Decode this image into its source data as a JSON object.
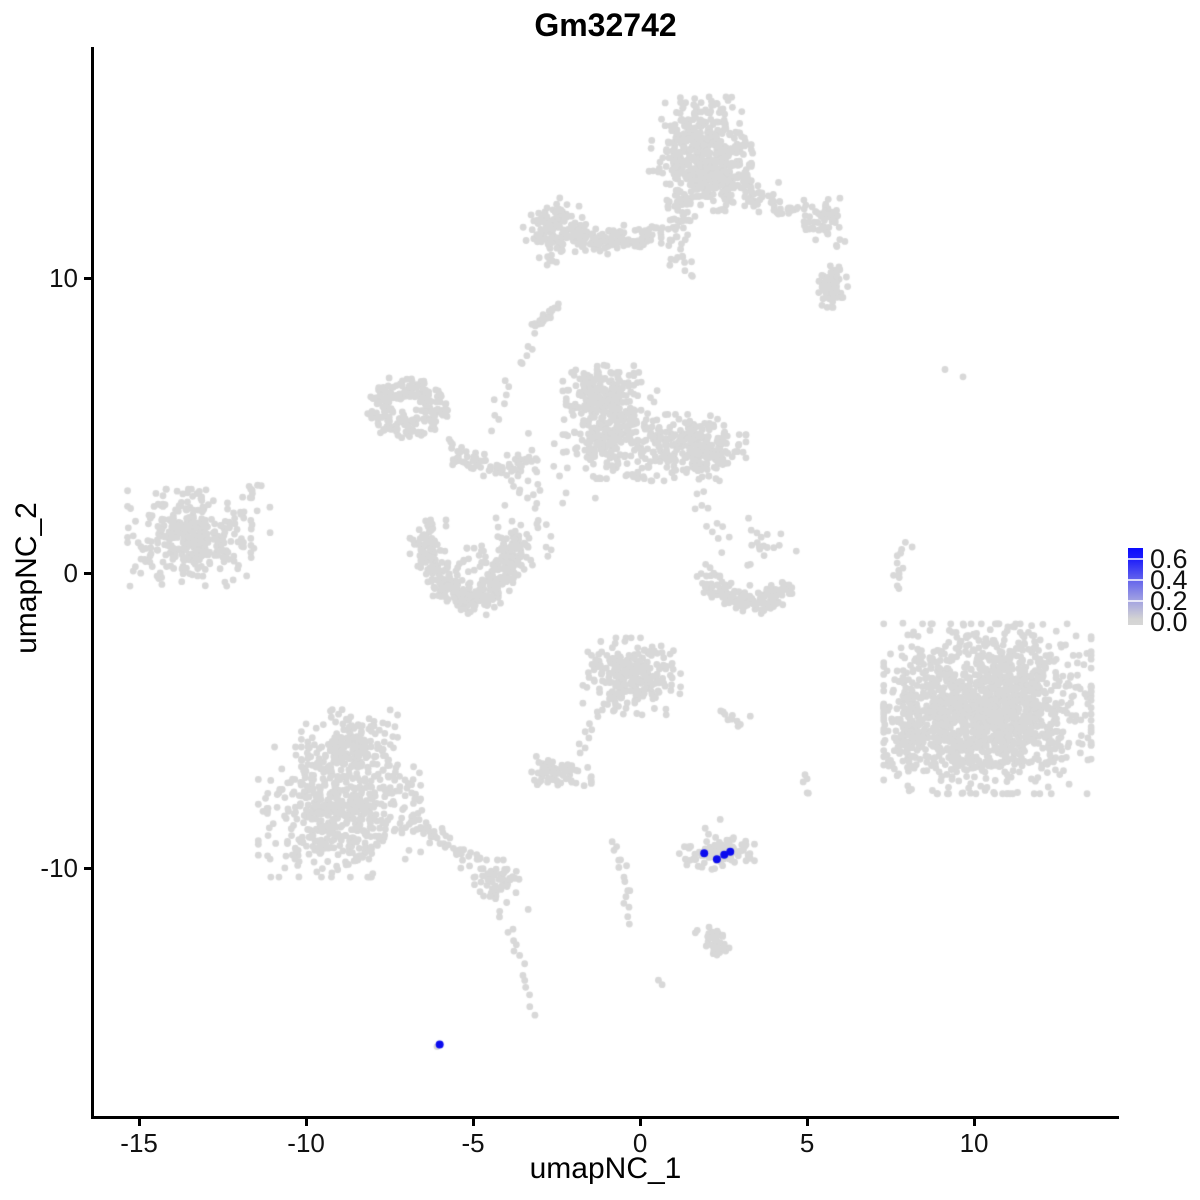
{
  "title": "Gm32742",
  "axes": {
    "x_label": "umapNC_1",
    "y_label": "umapNC_2",
    "x_ticks": [
      "-15",
      "-10",
      "-5",
      "0",
      "5",
      "10"
    ],
    "x_tick_values": [
      -15,
      -10,
      -5,
      0,
      5,
      10
    ],
    "y_ticks": [
      "10",
      "0",
      "-10"
    ],
    "y_tick_values": [
      10,
      0,
      -10
    ]
  },
  "legend": {
    "tick_labels": [
      "0.6",
      "0.4",
      "0.2",
      "0.0"
    ],
    "tick_values": [
      0.6,
      0.4,
      0.2,
      0.0
    ],
    "low_color": "#d3d3d3",
    "high_color": "#0b0bff",
    "gradient_stops": [
      "#d6d6d6 0%",
      "#d3d3d3 8%",
      "#9b9be3 35%",
      "#5b5bee 62%",
      "#1d1dfa 86%",
      "#0b0bff 100%"
    ]
  },
  "chart_data": {
    "type": "scatter",
    "title": "Gm32742",
    "xlabel": "umapNC_1",
    "ylabel": "umapNC_2",
    "xlim": [
      -16.38,
      14.31
    ],
    "ylim": [
      -18.47,
      17.83
    ],
    "grid": false,
    "legend_position": "right",
    "point_color": "#d8d8d8",
    "highlight_color": "#0b0bee",
    "point_radius": 3.4,
    "highlight_radius": 4,
    "colorbar_range": [
      0.0,
      0.6
    ],
    "clusters": [
      {
        "name": "top-main",
        "kind": "blob",
        "cx": 1.8,
        "cy": 14.45,
        "sx": 0.68,
        "sy": 0.75,
        "n": 360
      },
      {
        "name": "top-main-lower",
        "kind": "blob",
        "cx": 2.2,
        "cy": 13.4,
        "sx": 0.52,
        "sy": 0.5,
        "n": 200
      },
      {
        "name": "top-funnel",
        "kind": "blob",
        "cx": 1.15,
        "cy": 12.2,
        "sx": 0.22,
        "sy": 0.5,
        "n": 45
      },
      {
        "name": "top-funnel-trail",
        "kind": "string",
        "pts": [
          [
            1.15,
            11.2
          ],
          [
            1.5,
            10.0
          ]
        ],
        "jitter": 0.22,
        "n": 14
      },
      {
        "name": "top-left-arm-blob",
        "kind": "blob",
        "cx": -2.6,
        "cy": 11.7,
        "sx": 0.4,
        "sy": 0.45,
        "n": 115
      },
      {
        "name": "top-left-arm-band",
        "kind": "string",
        "pts": [
          [
            -2.1,
            11.55
          ],
          [
            -1.0,
            11.3
          ],
          [
            0.6,
            11.55
          ]
        ],
        "jitter": 0.2,
        "n": 130
      },
      {
        "name": "top-left-arm-tail",
        "kind": "string",
        "pts": [
          [
            -2.75,
            11.0
          ],
          [
            -2.6,
            10.3
          ]
        ],
        "jitter": 0.1,
        "n": 6
      },
      {
        "name": "top-right-arm",
        "kind": "string",
        "pts": [
          [
            3.0,
            13.0
          ],
          [
            4.4,
            12.4
          ],
          [
            5.9,
            11.4
          ]
        ],
        "jitter": 0.26,
        "n": 85
      },
      {
        "name": "top-right-knot",
        "kind": "blob",
        "cx": 5.6,
        "cy": 12.1,
        "sx": 0.2,
        "sy": 0.27,
        "n": 28
      },
      {
        "name": "right-arm-blob",
        "kind": "blob",
        "cx": 5.72,
        "cy": 9.7,
        "sx": 0.22,
        "sy": 0.33,
        "n": 65
      },
      {
        "name": "streak",
        "kind": "string",
        "pts": [
          [
            -3.08,
            8.4
          ],
          [
            -2.5,
            9.05
          ]
        ],
        "jitter": 0.09,
        "n": 18
      },
      {
        "name": "mid-string-up",
        "kind": "string",
        "pts": [
          [
            -4.5,
            4.9
          ],
          [
            -3.0,
            8.8
          ]
        ],
        "jitter": 0.13,
        "n": 16
      },
      {
        "name": "mid-ring",
        "kind": "ring",
        "cx": -6.95,
        "cy": 5.6,
        "r": 0.85,
        "w": 0.38,
        "squash": 0.8,
        "n": 190
      },
      {
        "name": "mid-ring-core",
        "kind": "blob",
        "cx": -6.95,
        "cy": 5.6,
        "sx": 0.5,
        "sy": 0.45,
        "n": 25
      },
      {
        "name": "mid-connector",
        "kind": "string",
        "pts": [
          [
            -5.8,
            4.3
          ],
          [
            -4.5,
            3.6
          ],
          [
            -3.2,
            3.9
          ]
        ],
        "jitter": 0.18,
        "n": 70
      },
      {
        "name": "mid-central",
        "kind": "blob",
        "cx": -0.85,
        "cy": 5.0,
        "sx": 0.65,
        "sy": 0.8,
        "n": 300
      },
      {
        "name": "mid-central-top",
        "kind": "blob",
        "cx": -1.2,
        "cy": 6.1,
        "sx": 0.45,
        "sy": 0.42,
        "n": 140
      },
      {
        "name": "mid-right-lobe",
        "kind": "blob",
        "cx": 1.55,
        "cy": 4.25,
        "sx": 0.72,
        "sy": 0.5,
        "n": 270
      },
      {
        "name": "mid-scatter",
        "kind": "blob",
        "cx": -3.0,
        "cy": 2.6,
        "sx": 0.75,
        "sy": 0.95,
        "n": 40
      },
      {
        "name": "crescent-band",
        "kind": "string",
        "pts": [
          [
            -6.4,
            0.5
          ],
          [
            -5.05,
            -0.85
          ],
          [
            -3.75,
            0.55
          ]
        ],
        "jitter": 0.22,
        "n": 240
      },
      {
        "name": "crescent-left-horn",
        "kind": "blob",
        "cx": -6.35,
        "cy": 0.9,
        "sx": 0.24,
        "sy": 0.4,
        "n": 70
      },
      {
        "name": "crescent-right-horn",
        "kind": "blob",
        "cx": -3.8,
        "cy": 0.75,
        "sx": 0.26,
        "sy": 0.36,
        "n": 70
      },
      {
        "name": "crescent-inner",
        "kind": "blob",
        "cx": -5.1,
        "cy": 0.4,
        "sx": 0.5,
        "sy": 0.35,
        "n": 35
      },
      {
        "name": "left-cluster",
        "kind": "blob",
        "cx": -13.5,
        "cy": 1.2,
        "sx": 0.82,
        "sy": 0.73,
        "n": 330
      },
      {
        "name": "left-cluster-outliers",
        "kind": "blob",
        "cx": -11.85,
        "cy": 1.4,
        "sx": 0.38,
        "sy": 0.85,
        "n": 20
      },
      {
        "name": "left-cluster-streak",
        "kind": "string",
        "pts": [
          [
            -11.75,
            2.65
          ],
          [
            -11.3,
            2.9
          ]
        ],
        "jitter": 0.06,
        "n": 6
      },
      {
        "name": "right-string",
        "kind": "string",
        "pts": [
          [
            7.95,
            1.05
          ],
          [
            7.65,
            -0.5
          ]
        ],
        "jitter": 0.1,
        "n": 13
      },
      {
        "name": "right-string-dots",
        "kind": "dots",
        "pts": [
          [
            7.87,
            -1.7
          ],
          [
            9.13,
            6.9
          ],
          [
            9.67,
            6.65
          ]
        ]
      },
      {
        "name": "smile-band",
        "kind": "string",
        "pts": [
          [
            1.9,
            -0.1
          ],
          [
            3.2,
            -1.0
          ],
          [
            4.45,
            -0.4
          ]
        ],
        "jitter": 0.2,
        "n": 150
      },
      {
        "name": "smile-upper",
        "kind": "blob",
        "cx": 3.45,
        "cy": 0.9,
        "sx": 0.55,
        "sy": 0.5,
        "n": 20
      },
      {
        "name": "smile-trail",
        "kind": "string",
        "pts": [
          [
            1.8,
            2.9
          ],
          [
            2.25,
            1.0
          ]
        ],
        "jitter": 0.16,
        "n": 10
      },
      {
        "name": "right-big",
        "kind": "blob",
        "cx": 10.4,
        "cy": -4.6,
        "sx": 1.38,
        "sy": 1.28,
        "n": 1500
      },
      {
        "name": "right-big-left-lobe",
        "kind": "blob",
        "cx": 8.1,
        "cy": -5.3,
        "sx": 0.38,
        "sy": 0.75,
        "n": 110
      },
      {
        "name": "right-big-top-scatter",
        "kind": "blob",
        "cx": 8.45,
        "cy": -2.7,
        "sx": 0.3,
        "sy": 0.3,
        "n": 12
      },
      {
        "name": "center-blob",
        "kind": "blob",
        "cx": -0.25,
        "cy": -3.5,
        "sx": 0.65,
        "sy": 0.58,
        "n": 280
      },
      {
        "name": "center-funnel",
        "kind": "string",
        "pts": [
          [
            -1.2,
            -4.5
          ],
          [
            -1.85,
            -6.1
          ]
        ],
        "jitter": 0.09,
        "n": 10
      },
      {
        "name": "small-left-blob",
        "kind": "blob",
        "cx": -2.45,
        "cy": -6.8,
        "sx": 0.44,
        "sy": 0.26,
        "n": 70
      },
      {
        "name": "small-arc",
        "kind": "string",
        "pts": [
          [
            2.35,
            -4.8
          ],
          [
            3.0,
            -5.1
          ]
        ],
        "jitter": 0.08,
        "n": 10
      },
      {
        "name": "small-arc-dot",
        "kind": "dots",
        "pts": [
          [
            3.3,
            -4.85
          ]
        ]
      },
      {
        "name": "sparse-chain",
        "kind": "string",
        "pts": [
          [
            4.8,
            -6.7
          ],
          [
            5.15,
            -7.75
          ]
        ],
        "jitter": 0.07,
        "n": 5
      },
      {
        "name": "bottomleft-top",
        "kind": "blob",
        "cx": -8.7,
        "cy": -5.8,
        "sx": 0.64,
        "sy": 0.52,
        "n": 170
      },
      {
        "name": "bottomleft-main",
        "kind": "blob",
        "cx": -9.0,
        "cy": -8.1,
        "sx": 1.08,
        "sy": 0.98,
        "n": 540
      },
      {
        "name": "bottomleft-tail",
        "kind": "string",
        "pts": [
          [
            -7.0,
            -8.2
          ],
          [
            -4.85,
            -9.85
          ]
        ],
        "jitter": 0.2,
        "n": 55
      },
      {
        "name": "tail-knot",
        "kind": "blob",
        "cx": -4.3,
        "cy": -10.4,
        "sx": 0.3,
        "sy": 0.3,
        "n": 55
      },
      {
        "name": "tail-string",
        "kind": "string",
        "pts": [
          [
            -4.1,
            -11.2
          ],
          [
            -3.7,
            -13.0
          ],
          [
            -3.1,
            -15.1
          ]
        ],
        "jitter": 0.09,
        "n": 16
      },
      {
        "name": "center-string",
        "kind": "string",
        "pts": [
          [
            -0.9,
            -9.1
          ],
          [
            -0.45,
            -10.4
          ],
          [
            -0.35,
            -12.0
          ]
        ],
        "jitter": 0.08,
        "n": 16
      },
      {
        "name": "stray-dots",
        "kind": "dots",
        "pts": [
          [
            -3.35,
            -11.4
          ],
          [
            0.55,
            -13.8
          ],
          [
            0.66,
            -13.95
          ],
          [
            -6.08,
            -16.05
          ]
        ]
      },
      {
        "name": "y-cluster",
        "kind": "blob",
        "cx": 2.15,
        "cy": -12.45,
        "sx": 0.22,
        "sy": 0.2,
        "n": 28
      },
      {
        "name": "y-cluster-arm",
        "kind": "blob",
        "cx": 2.45,
        "cy": -12.75,
        "sx": 0.16,
        "sy": 0.16,
        "n": 12
      },
      {
        "name": "blue-cluster-gray-base",
        "kind": "blob",
        "cx": 2.3,
        "cy": -9.5,
        "sx": 0.5,
        "sy": 0.24,
        "n": 110
      },
      {
        "name": "blue-cluster-above-dots",
        "kind": "dots",
        "pts": [
          [
            1.95,
            -8.65
          ],
          [
            2.05,
            -8.85
          ],
          [
            2.4,
            -8.35
          ]
        ]
      }
    ],
    "highlights": [
      {
        "x": 1.92,
        "y": -9.5,
        "value": 0.6
      },
      {
        "x": 2.3,
        "y": -9.7,
        "value": 0.5
      },
      {
        "x": 2.52,
        "y": -9.55,
        "value": 0.55
      },
      {
        "x": 2.7,
        "y": -9.45,
        "value": 0.6
      },
      {
        "x": -6.0,
        "y": -15.98,
        "value": 0.6
      }
    ]
  }
}
